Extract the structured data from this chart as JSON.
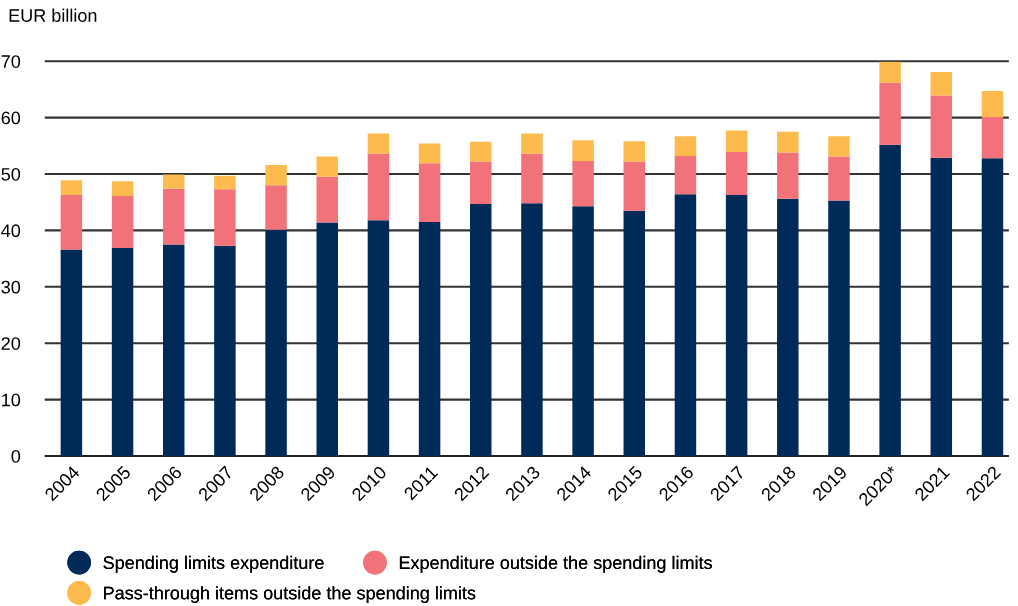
{
  "chart_data": {
    "type": "bar",
    "stacked": true,
    "ylabel": "EUR billion",
    "categories": [
      "2004",
      "2005",
      "2006",
      "2007",
      "2008",
      "2009",
      "2010",
      "2011",
      "2012",
      "2013",
      "2014",
      "2015",
      "2016",
      "2017",
      "2018",
      "2019",
      "2020*",
      "2021",
      "2022"
    ],
    "series": [
      {
        "name": "Spending limits expenditure",
        "color": "#002b59",
        "values": [
          36.6,
          36.9,
          37.5,
          37.3,
          40.1,
          41.4,
          41.8,
          41.5,
          44.7,
          44.8,
          44.3,
          43.5,
          46.4,
          46.3,
          45.6,
          45.3,
          55.2,
          52.9,
          52.8
        ]
      },
      {
        "name": "Expenditure outside the spending limits",
        "color": "#f2727a",
        "values": [
          9.7,
          9.2,
          9.9,
          10.0,
          7.9,
          8.1,
          11.8,
          10.4,
          7.5,
          8.8,
          8.0,
          8.7,
          6.8,
          7.6,
          8.2,
          7.8,
          11.0,
          11.0,
          7.3
        ]
      },
      {
        "name": "Pass-through items outside the spending limits",
        "color": "#fdba4d",
        "values": [
          2.6,
          2.6,
          2.5,
          2.4,
          3.6,
          3.6,
          3.6,
          3.5,
          3.5,
          3.6,
          3.7,
          3.6,
          3.5,
          3.8,
          3.7,
          3.6,
          3.7,
          4.2,
          4.6
        ]
      }
    ],
    "ylim": [
      0,
      70
    ],
    "yticks": [
      0,
      10,
      20,
      30,
      40,
      50,
      60,
      70
    ],
    "grid": "y",
    "legend": "bottom",
    "marker": "circle"
  }
}
